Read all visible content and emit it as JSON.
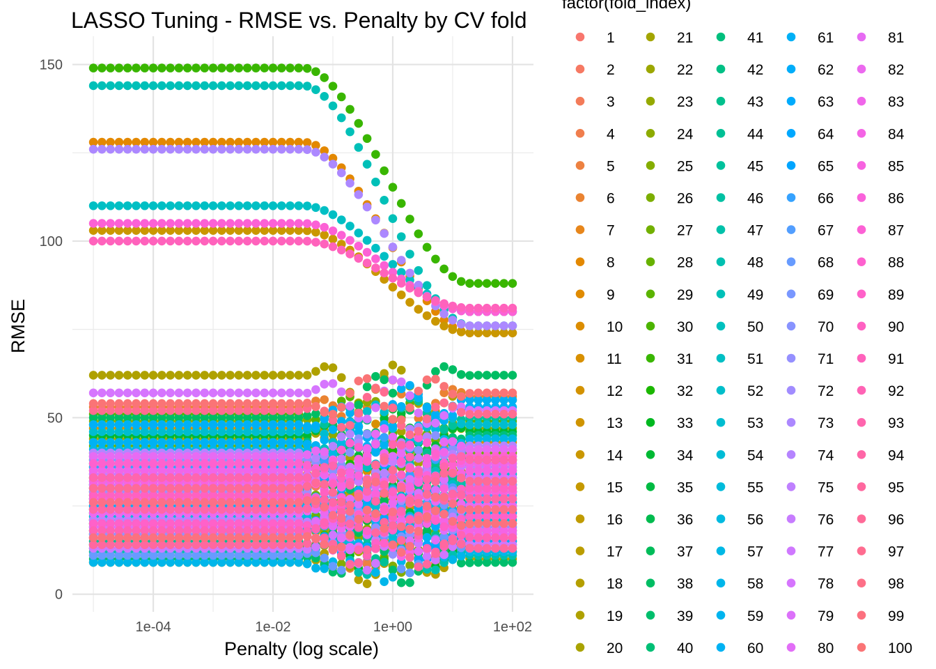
{
  "chart_data": {
    "type": "scatter",
    "title": "LASSO Tuning - RMSE vs. Penalty by CV fold",
    "xlabel": "Penalty (log scale)",
    "ylabel": "RMSE",
    "x_scale": "log10",
    "xlim": [
      1e-05,
      100
    ],
    "ylim": [
      0,
      155
    ],
    "x_ticks": [
      0.0001,
      0.01,
      1,
      100
    ],
    "x_tick_labels": [
      "1e-04",
      "1e-02",
      "1e+00",
      "1e+02"
    ],
    "y_ticks": [
      0,
      50,
      100,
      150
    ],
    "y_tick_labels": [
      "0",
      "50",
      "100",
      "150"
    ],
    "grid": true,
    "legend": {
      "title": "factor(fold_index)",
      "position": "right",
      "columns": 5,
      "entries": [
        "1",
        "2",
        "3",
        "4",
        "5",
        "6",
        "7",
        "8",
        "9",
        "10",
        "11",
        "12",
        "13",
        "14",
        "15",
        "16",
        "17",
        "18",
        "19",
        "20",
        "21",
        "22",
        "23",
        "24",
        "25",
        "26",
        "27",
        "28",
        "29",
        "30",
        "31",
        "32",
        "33",
        "34",
        "35",
        "36",
        "37",
        "38",
        "39",
        "40",
        "41",
        "42",
        "43",
        "44",
        "45",
        "46",
        "47",
        "48",
        "49",
        "50",
        "51",
        "52",
        "53",
        "54",
        "55",
        "56",
        "57",
        "58",
        "59",
        "60",
        "61",
        "62",
        "63",
        "64",
        "65",
        "66",
        "67",
        "68",
        "69",
        "70",
        "71",
        "72",
        "73",
        "74",
        "75",
        "76",
        "77",
        "78",
        "79",
        "80",
        "81",
        "82",
        "83",
        "84",
        "85",
        "86",
        "87",
        "88",
        "89",
        "90",
        "91",
        "92",
        "93",
        "94",
        "95",
        "96",
        "97",
        "98",
        "99",
        "100"
      ]
    },
    "penalty_log10_range": [
      -5,
      2
    ],
    "points_per_fold": 50,
    "series": [
      {
        "name": "1",
        "plateau": 15,
        "final": 13
      },
      {
        "name": "2",
        "plateau": 22,
        "final": 24
      },
      {
        "name": "3",
        "plateau": 30,
        "final": 29
      },
      {
        "name": "4",
        "plateau": 34,
        "final": 38
      },
      {
        "name": "5",
        "plateau": 12,
        "final": 12
      },
      {
        "name": "6",
        "plateau": 53,
        "final": 56
      },
      {
        "name": "7",
        "plateau": 40,
        "final": 40
      },
      {
        "name": "8",
        "plateau": 128,
        "final": 74
      },
      {
        "name": "9",
        "plateau": 18,
        "final": 20
      },
      {
        "name": "10",
        "plateau": 27,
        "final": 31
      },
      {
        "name": "11",
        "plateau": 47,
        "final": 43
      },
      {
        "name": "12",
        "plateau": 21,
        "final": 19
      },
      {
        "name": "13",
        "plateau": 33,
        "final": 36
      },
      {
        "name": "14",
        "plateau": 103,
        "final": 74
      },
      {
        "name": "15",
        "plateau": 14,
        "final": 16
      },
      {
        "name": "16",
        "plateau": 25,
        "final": 28
      },
      {
        "name": "17",
        "plateau": 38,
        "final": 36
      },
      {
        "name": "18",
        "plateau": 9,
        "final": 10
      },
      {
        "name": "19",
        "plateau": 62,
        "final": 55
      },
      {
        "name": "20",
        "plateau": 44,
        "final": 41
      },
      {
        "name": "21",
        "plateau": 16,
        "final": 18
      },
      {
        "name": "22",
        "plateau": 35,
        "final": 33
      },
      {
        "name": "23",
        "plateau": 20,
        "final": 22
      },
      {
        "name": "24",
        "plateau": 49,
        "final": 47
      },
      {
        "name": "25",
        "plateau": 11,
        "final": 14
      },
      {
        "name": "26",
        "plateau": 29,
        "final": 34
      },
      {
        "name": "27",
        "plateau": 42,
        "final": 40
      },
      {
        "name": "28",
        "plateau": 24,
        "final": 26
      },
      {
        "name": "29",
        "plateau": 51,
        "final": 49
      },
      {
        "name": "30",
        "plateau": 17,
        "final": 15
      },
      {
        "name": "31",
        "plateau": 149,
        "final": 88
      },
      {
        "name": "32",
        "plateau": 36,
        "final": 38
      },
      {
        "name": "33",
        "plateau": 13,
        "final": 12
      },
      {
        "name": "34",
        "plateau": 45,
        "final": 46
      },
      {
        "name": "35",
        "plateau": 23,
        "final": 25
      },
      {
        "name": "36",
        "plateau": 31,
        "final": 30
      },
      {
        "name": "37",
        "plateau": 19,
        "final": 21
      },
      {
        "name": "38",
        "plateau": 50,
        "final": 62
      },
      {
        "name": "39",
        "plateau": 10,
        "final": 9
      },
      {
        "name": "40",
        "plateau": 28,
        "final": 32
      },
      {
        "name": "41",
        "plateau": 43,
        "final": 45
      },
      {
        "name": "42",
        "plateau": 26,
        "final": 27
      },
      {
        "name": "43",
        "plateau": 37,
        "final": 35
      },
      {
        "name": "44",
        "plateau": 15,
        "final": 17
      },
      {
        "name": "45",
        "plateau": 48,
        "final": 50
      },
      {
        "name": "46",
        "plateau": 21,
        "final": 23
      },
      {
        "name": "47",
        "plateau": 33,
        "final": 31
      },
      {
        "name": "48",
        "plateau": 12,
        "final": 11
      },
      {
        "name": "49",
        "plateau": 144,
        "final": 76
      },
      {
        "name": "50",
        "plateau": 39,
        "final": 37
      },
      {
        "name": "51",
        "plateau": 110,
        "final": 80
      },
      {
        "name": "52",
        "plateau": 25,
        "final": 29
      },
      {
        "name": "53",
        "plateau": 46,
        "final": 48
      },
      {
        "name": "54",
        "plateau": 18,
        "final": 20
      },
      {
        "name": "55",
        "plateau": 32,
        "final": 34
      },
      {
        "name": "56",
        "plateau": 22,
        "final": 21
      },
      {
        "name": "57",
        "plateau": 41,
        "final": 44
      },
      {
        "name": "58",
        "plateau": 9,
        "final": 12
      },
      {
        "name": "59",
        "plateau": 27,
        "final": 26
      },
      {
        "name": "60",
        "plateau": 43,
        "final": 53
      },
      {
        "name": "61",
        "plateau": 48,
        "final": 55
      },
      {
        "name": "62",
        "plateau": 25,
        "final": 23
      },
      {
        "name": "63",
        "plateau": 20,
        "final": 18
      },
      {
        "name": "64",
        "plateau": 30,
        "final": 33
      },
      {
        "name": "65",
        "plateau": 14,
        "final": 15
      },
      {
        "name": "66",
        "plateau": 36,
        "final": 39
      },
      {
        "name": "67",
        "plateau": 26,
        "final": 28
      },
      {
        "name": "68",
        "plateau": 11,
        "final": 13
      },
      {
        "name": "69",
        "plateau": 24,
        "final": 22
      },
      {
        "name": "70",
        "plateau": 38,
        "final": 41
      },
      {
        "name": "71",
        "plateau": 17,
        "final": 19
      },
      {
        "name": "72",
        "plateau": 29,
        "final": 31
      },
      {
        "name": "73",
        "plateau": 126,
        "final": 76
      },
      {
        "name": "74",
        "plateau": 40,
        "final": 42
      },
      {
        "name": "75",
        "plateau": 21,
        "final": 24
      },
      {
        "name": "76",
        "plateau": 34,
        "final": 36
      },
      {
        "name": "77",
        "plateau": 13,
        "final": 14
      },
      {
        "name": "78",
        "plateau": 57,
        "final": 52
      },
      {
        "name": "79",
        "plateau": 31,
        "final": 33
      },
      {
        "name": "80",
        "plateau": 19,
        "final": 17
      },
      {
        "name": "81",
        "plateau": 39,
        "final": 41
      },
      {
        "name": "82",
        "plateau": 23,
        "final": 25
      },
      {
        "name": "83",
        "plateau": 35,
        "final": 37
      },
      {
        "name": "84",
        "plateau": 16,
        "final": 18
      },
      {
        "name": "85",
        "plateau": 32,
        "final": 35
      },
      {
        "name": "86",
        "plateau": 27,
        "final": 29
      },
      {
        "name": "87",
        "plateau": 105,
        "final": 80
      },
      {
        "name": "88",
        "plateau": 37,
        "final": 39
      },
      {
        "name": "89",
        "plateau": 20,
        "final": 22
      },
      {
        "name": "90",
        "plateau": 28,
        "final": 30
      },
      {
        "name": "91",
        "plateau": 100,
        "final": 81
      },
      {
        "name": "92",
        "plateau": 18,
        "final": 16
      },
      {
        "name": "93",
        "plateau": 33,
        "final": 38
      },
      {
        "name": "94",
        "plateau": 24,
        "final": 27
      },
      {
        "name": "95",
        "plateau": 14,
        "final": 13
      },
      {
        "name": "96",
        "plateau": 30,
        "final": 32
      },
      {
        "name": "97",
        "plateau": 52,
        "final": 51
      },
      {
        "name": "98",
        "plateau": 26,
        "final": 24
      },
      {
        "name": "99",
        "plateau": 16,
        "final": 20
      },
      {
        "name": "100",
        "plateau": 54,
        "final": 57
      }
    ]
  }
}
